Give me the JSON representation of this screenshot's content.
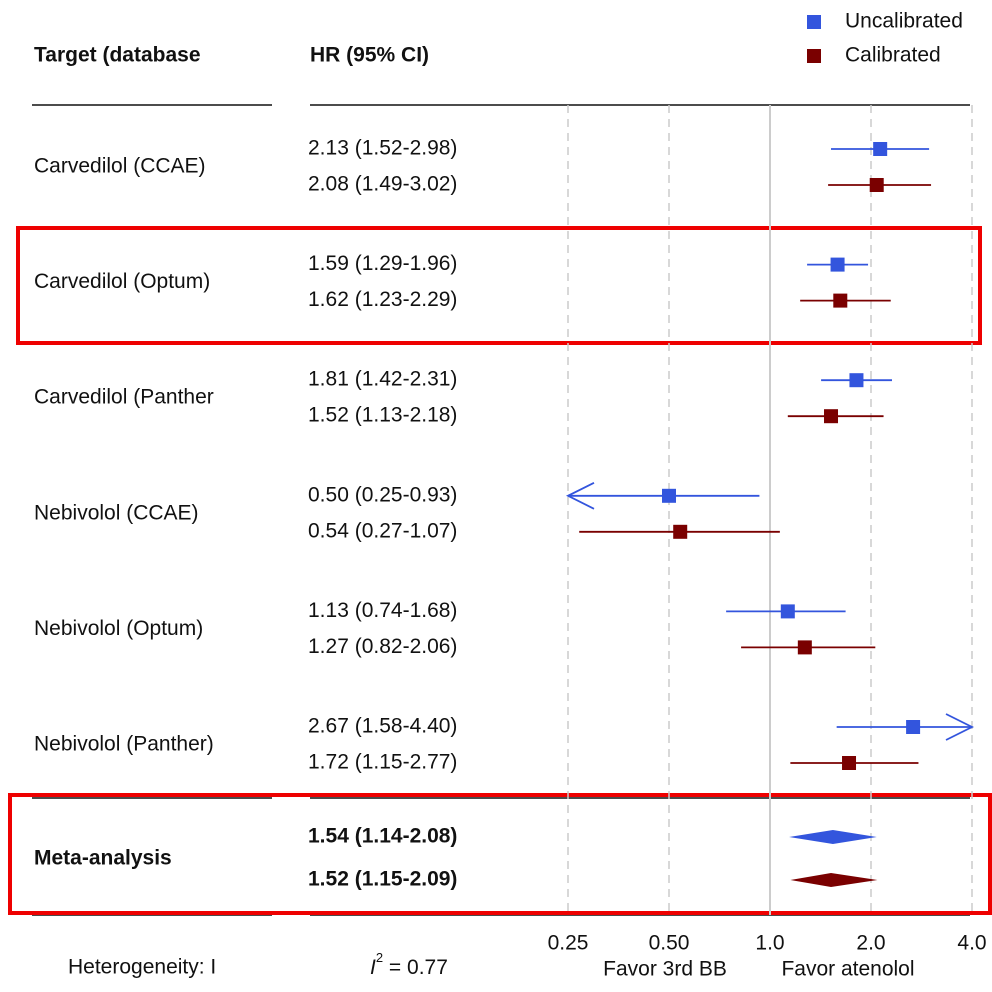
{
  "chart_data": {
    "type": "forest",
    "column_headers": [
      "Target (database",
      "HR (95% CI)"
    ],
    "categories": [
      "Carvedilol (CCAE)",
      "Carvedilol (Optum)",
      "Carvedilol (Panther",
      "Nebivolol (CCAE)",
      "Nebivolol (Optum)",
      "Nebivolol (Panther)"
    ],
    "series": [
      {
        "name": "Uncalibrated",
        "color": "#3355dd",
        "values": [
          2.13,
          1.59,
          1.81,
          0.5,
          1.13,
          2.67
        ],
        "lower": [
          1.52,
          1.29,
          1.42,
          0.25,
          0.74,
          1.58
        ],
        "upper": [
          2.98,
          1.96,
          2.31,
          0.93,
          1.68,
          4.4
        ],
        "value_labels": [
          "2.13 (1.52-2.98)",
          "1.59 (1.29-1.96)",
          "1.81 (1.42-2.31)",
          "0.50 (0.25-0.93)",
          "1.13 (0.74-1.68)",
          "2.67 (1.58-4.40)"
        ]
      },
      {
        "name": "Calibrated",
        "color": "#7a0000",
        "values": [
          2.08,
          1.62,
          1.52,
          0.54,
          1.27,
          1.72
        ],
        "lower": [
          1.49,
          1.23,
          1.13,
          0.27,
          0.82,
          1.15
        ],
        "upper": [
          3.02,
          2.29,
          2.18,
          1.07,
          2.06,
          2.77
        ],
        "value_labels": [
          "2.08 (1.49-3.02)",
          "1.62 (1.23-2.29)",
          "1.52 (1.13-2.18)",
          "0.54 (0.27-1.07)",
          "1.27 (0.82-2.06)",
          "1.72 (1.15-2.77)"
        ]
      }
    ],
    "meta": {
      "label": "Meta-analysis",
      "values": [
        1.54,
        1.52
      ],
      "lower": [
        1.14,
        1.15
      ],
      "upper": [
        2.08,
        2.09
      ],
      "value_labels": [
        "1.54 (1.14-2.08)",
        "1.52 (1.15-2.09)"
      ]
    },
    "heterogeneity_label": "Heterogeneity: I",
    "i2": {
      "symbol": "I",
      "superscript": "2",
      "text": " = 0.77"
    },
    "x_scale": "log",
    "xlim": [
      0.25,
      4.0
    ],
    "xticks": [
      0.25,
      {
        "value": 0.5,
        "label": "0.50"
      },
      {
        "value": 1,
        "label": "1.0"
      },
      {
        "value": 2,
        "label": "2.0"
      },
      {
        "value": 4,
        "label": "4.0"
      }
    ],
    "reference_line": 1,
    "x_notes": [
      "Favor 3rd BB",
      "Favor atenolol"
    ]
  }
}
